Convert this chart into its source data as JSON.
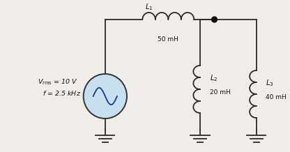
{
  "bg_color": "#f0ede8",
  "wire_color": "#2a2a2a",
  "coil_color": "#2a2a2a",
  "ground_color": "#2a2a2a",
  "text_color": "#111111",
  "source_fill": "#c8dff0",
  "source_edge": "#333333",
  "node_dot_color": "#111111",
  "L1_val": "50 mH",
  "L2_val": "20 mH",
  "L3_val": "40 mH"
}
